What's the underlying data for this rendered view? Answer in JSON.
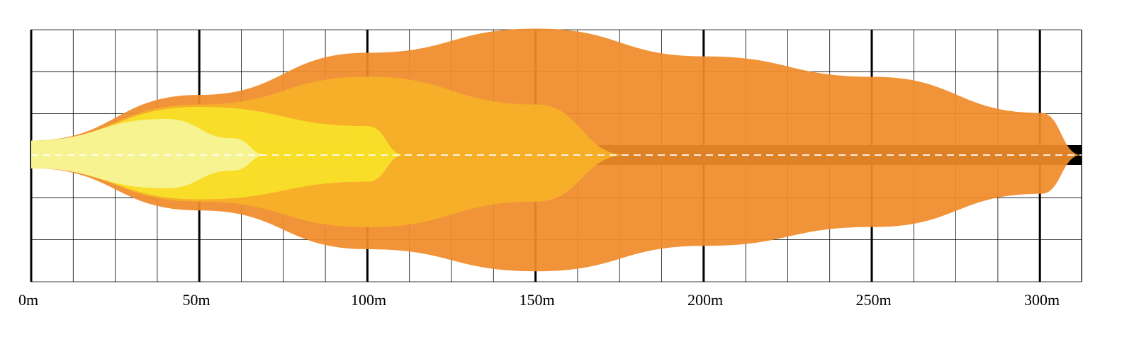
{
  "chart_data": {
    "type": "area",
    "title": "",
    "xlabel": "",
    "ylabel": "",
    "x_ticks": [
      "0m",
      "50m",
      "100m",
      "150m",
      "200m",
      "250m",
      "300m"
    ],
    "xlim": [
      0,
      312
    ],
    "grid": true,
    "series": [
      {
        "color": "#f08c2a",
        "reach": 312,
        "max_width": 10.6,
        "width_at": [
          [
            0,
            1.2
          ],
          [
            50,
            5
          ],
          [
            100,
            8.5
          ],
          [
            150,
            10.5
          ],
          [
            200,
            8.2
          ],
          [
            250,
            6.5
          ],
          [
            300,
            3.5
          ],
          [
            312,
            0
          ]
        ]
      },
      {
        "color": "#f8b228",
        "reach": 177,
        "max_width": 6.9,
        "width_at": [
          [
            0,
            1.2
          ],
          [
            50,
            4.2
          ],
          [
            100,
            6.5
          ],
          [
            150,
            4.2
          ],
          [
            177,
            0
          ]
        ]
      },
      {
        "color": "#f8e228",
        "reach": 111,
        "max_width": 4.4,
        "width_at": [
          [
            0,
            1.2
          ],
          [
            50,
            4
          ],
          [
            100,
            2.4
          ],
          [
            111,
            0
          ]
        ]
      },
      {
        "color": "#f6f49a",
        "reach": 70,
        "max_width": 3,
        "width_at": [
          [
            0,
            1.2
          ],
          [
            40,
            3
          ],
          [
            60,
            1.4
          ],
          [
            70,
            0
          ]
        ]
      }
    ],
    "colors": {
      "road": "#000000",
      "grid": "#000000",
      "centerline": "#ffffff"
    }
  }
}
